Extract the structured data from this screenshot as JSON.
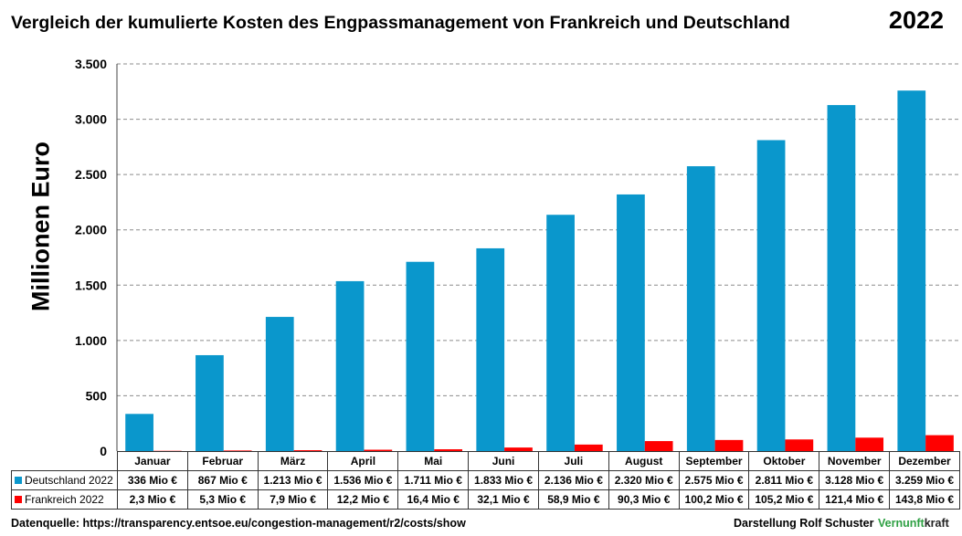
{
  "title": "Vergleich der kumulierte  Kosten des Engpassmanagement von Frankreich und Deutschland",
  "year": "2022",
  "colors": {
    "deutschland": "#0a97cc",
    "frankreich": "#ff0000",
    "grid": "#8c8c8c",
    "brand_green": "#2ea043"
  },
  "chart_data": {
    "type": "bar",
    "ylabel": "Millionen Euro",
    "xlabel": "",
    "ylim": [
      0,
      3500
    ],
    "yticks": [
      0,
      500,
      1000,
      1500,
      2000,
      2500,
      3000,
      3500
    ],
    "ytick_labels": [
      "0",
      "500",
      "1.000",
      "1.500",
      "2.000",
      "2.500",
      "3.000",
      "3.500"
    ],
    "grid": true,
    "legend": "table-rows",
    "categories": [
      "Januar",
      "Februar",
      "März",
      "April",
      "Mai",
      "Juni",
      "Juli",
      "August",
      "September",
      "Oktober",
      "November",
      "Dezember"
    ],
    "series": [
      {
        "name": "Deutschland 2022",
        "values": [
          336,
          867,
          1213,
          1536,
          1711,
          1833,
          2136,
          2320,
          2575,
          2811,
          3128,
          3259
        ],
        "labels": [
          "336 Mio €",
          "867 Mio €",
          "1.213 Mio €",
          "1.536 Mio €",
          "1.711 Mio €",
          "1.833 Mio €",
          "2.136 Mio €",
          "2.320 Mio €",
          "2.575 Mio €",
          "2.811 Mio €",
          "3.128 Mio €",
          "3.259 Mio €"
        ]
      },
      {
        "name": "Frankreich 2022",
        "values": [
          2.3,
          5.3,
          7.9,
          12.2,
          16.4,
          32.1,
          58.9,
          90.3,
          100.2,
          105.2,
          121.4,
          143.8
        ],
        "labels": [
          "2,3 Mio €",
          "5,3 Mio €",
          "7,9 Mio €",
          "12,2 Mio €",
          "16,4 Mio €",
          "32,1 Mio €",
          "58,9 Mio €",
          "90,3 Mio €",
          "100,2 Mio €",
          "105,2 Mio €",
          "121,4 Mio €",
          "143,8 Mio €"
        ]
      }
    ]
  },
  "footer": {
    "source": "Datenquelle:  https://transparency.entsoe.eu/congestion-management/r2/costs/show",
    "credit": "Darstellung  Rolf Schuster",
    "brand_part1": "Vernunft",
    "brand_part2": "kraft"
  }
}
